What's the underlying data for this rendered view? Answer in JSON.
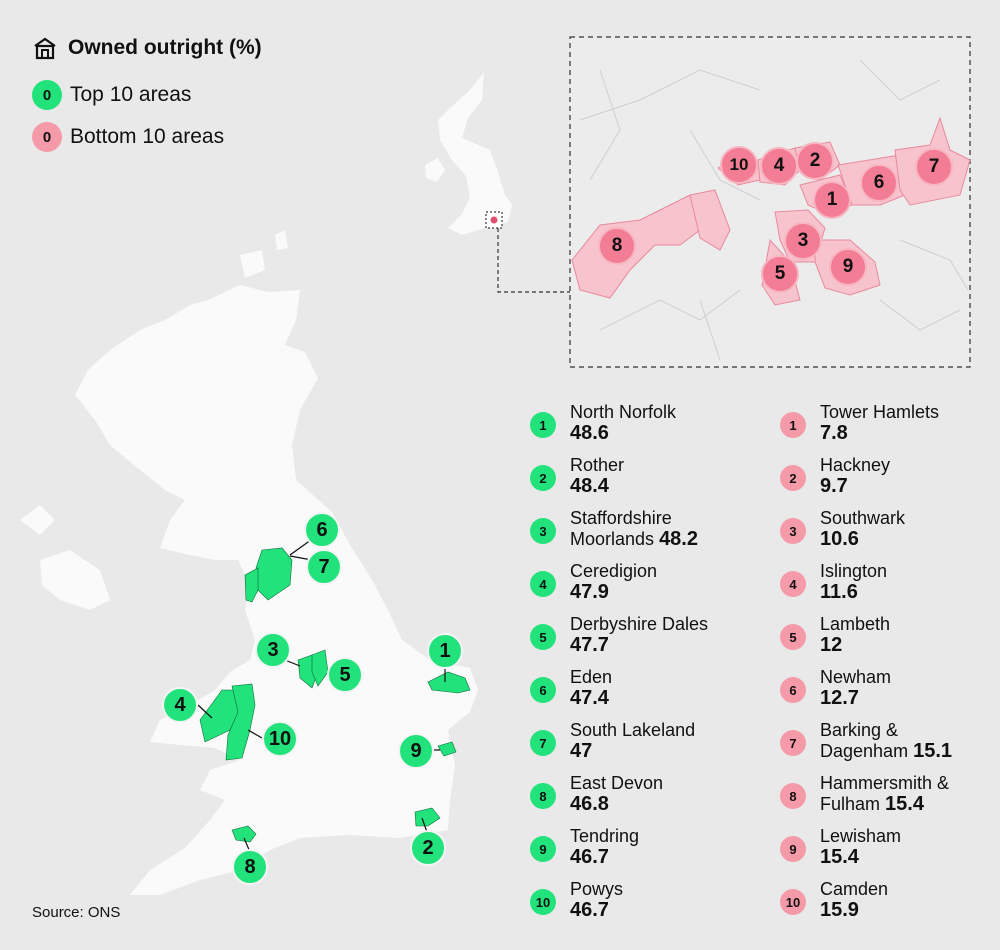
{
  "title": "Owned outright (%)",
  "legend": [
    {
      "badge": "0",
      "label": "Top 10 areas",
      "color": "#22e27c"
    },
    {
      "badge": "0",
      "label": "Bottom 10 areas",
      "color": "#f59aa9"
    }
  ],
  "icons": {
    "title": "house-icon"
  },
  "top10": [
    {
      "rank": "1",
      "name": "North Norfolk",
      "value": "48.6"
    },
    {
      "rank": "2",
      "name": "Rother",
      "value": "48.4"
    },
    {
      "rank": "3",
      "name": "Staffordshire Moorlands",
      "value": "48.2"
    },
    {
      "rank": "4",
      "name": "Ceredigion",
      "value": "47.9"
    },
    {
      "rank": "5",
      "name": "Derbyshire Dales",
      "value": "47.7"
    },
    {
      "rank": "6",
      "name": "Eden",
      "value": "47.4"
    },
    {
      "rank": "7",
      "name": "South Lakeland",
      "value": "47"
    },
    {
      "rank": "8",
      "name": "East Devon",
      "value": "46.8"
    },
    {
      "rank": "9",
      "name": "Tendring",
      "value": "46.7"
    },
    {
      "rank": "10",
      "name": "Powys",
      "value": "46.7"
    }
  ],
  "bottom10": [
    {
      "rank": "1",
      "name": "Tower Hamlets",
      "value": "7.8"
    },
    {
      "rank": "2",
      "name": "Hackney",
      "value": "9.7"
    },
    {
      "rank": "3",
      "name": "Southwark",
      "value": "10.6"
    },
    {
      "rank": "4",
      "name": "Islington",
      "value": "11.6"
    },
    {
      "rank": "5",
      "name": "Lambeth",
      "value": "12"
    },
    {
      "rank": "6",
      "name": "Newham",
      "value": "12.7"
    },
    {
      "rank": "7",
      "name": "Barking & Dagenham",
      "value": "15.1"
    },
    {
      "rank": "8",
      "name": "Hammersmith & Fulham",
      "value": "15.4"
    },
    {
      "rank": "9",
      "name": "Lewisham",
      "value": "15.4"
    },
    {
      "rank": "10",
      "name": "Camden",
      "value": "15.9"
    }
  ],
  "source": "Source: ONS",
  "colors": {
    "top": "#22e27c",
    "bottom": "#f59aa9",
    "land": "#fafafa",
    "background": "#e9e9e9",
    "london": "#f7c3cc"
  }
}
